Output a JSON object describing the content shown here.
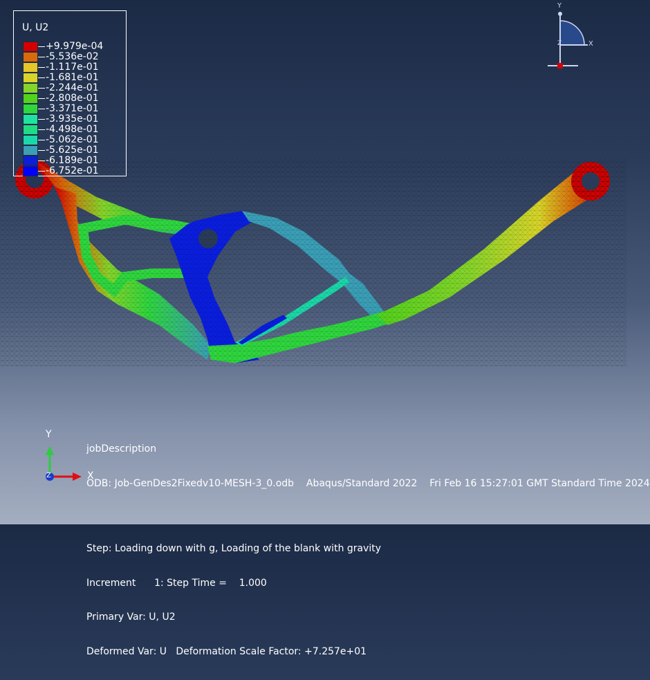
{
  "legend": {
    "title": "U, U2",
    "entries": [
      {
        "label": "+9.979e-04",
        "color": "#d40000"
      },
      {
        "label": "-5.536e-02",
        "color": "#d86a0c"
      },
      {
        "label": "-1.117e-01",
        "color": "#e6c628"
      },
      {
        "label": "-1.681e-01",
        "color": "#d9d429"
      },
      {
        "label": "-2.244e-01",
        "color": "#86d42a"
      },
      {
        "label": "-2.808e-01",
        "color": "#52d21c"
      },
      {
        "label": "-3.371e-01",
        "color": "#2fd63e"
      },
      {
        "label": "-3.935e-01",
        "color": "#20e2a0"
      },
      {
        "label": "-4.498e-01",
        "color": "#1fdc82"
      },
      {
        "label": "-5.062e-01",
        "color": "#1ad8a8"
      },
      {
        "label": "-5.625e-01",
        "color": "#3a9fb7"
      },
      {
        "label": "-6.189e-01",
        "color": "#0d1fd6"
      },
      {
        "label": "-6.752e-01",
        "color": "#0000ff"
      }
    ]
  },
  "info": {
    "job_description": "jobDescription",
    "odb_line": "ODB: Job-GenDes2Fixedv10-MESH-3_0.odb    Abaqus/Standard 2022    Fri Feb 16 15:27:01 GMT Standard Time 2024",
    "step_line": "Step: Loading down with g, Loading of the blank with gravity",
    "increment_line": "Increment      1: Step Time =    1.000",
    "primary_var": "Primary Var: U, U2",
    "deformed_var": "Deformed Var: U   Deformation Scale Factor: +7.257e+01"
  },
  "triad": {
    "y_label": "Y",
    "x_label": "X",
    "z_label": "Z"
  },
  "view_cube": {
    "y_label": "Y",
    "x_label": "X",
    "z_label": "Z"
  },
  "colors": {
    "mesh_hot": "#d40000",
    "mesh_cold": "#0000ff",
    "legend_border": "#ffffff"
  }
}
